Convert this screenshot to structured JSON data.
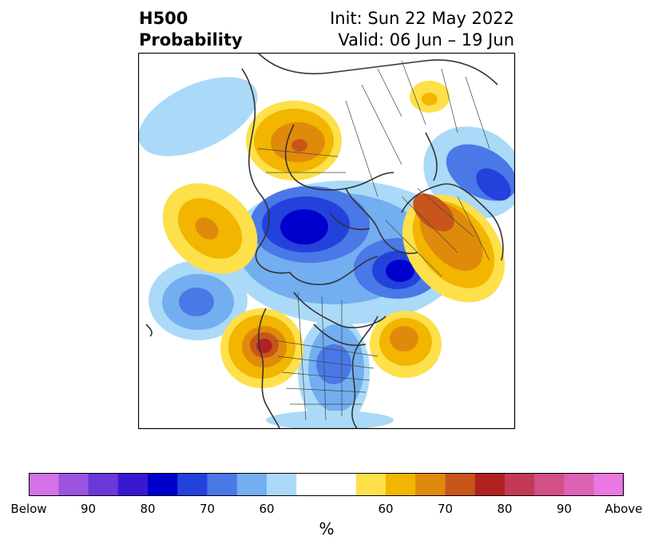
{
  "title": {
    "line1": "H500",
    "line2": "Probability",
    "init": "Init: Sun 22 May 2022",
    "valid": "Valid: 06 Jun – 19 Jun"
  },
  "colorbar": {
    "unit": "%",
    "tick_labels": [
      "Below",
      "90",
      "80",
      "70",
      "60",
      "60",
      "70",
      "80",
      "90",
      "Above"
    ],
    "colors": [
      "#d472e8",
      "#9c55e0",
      "#6a38d8",
      "#3a18d0",
      "#0000cc",
      "#2342dc",
      "#4a78e6",
      "#72aef0",
      "#aadaf8",
      "#ffffff",
      "#ffffff",
      "#fde04a",
      "#f2b500",
      "#e08a0c",
      "#c8561a",
      "#b02222",
      "#c23a56",
      "#d25086",
      "#dc62b4",
      "#ea78e2"
    ]
  }
}
